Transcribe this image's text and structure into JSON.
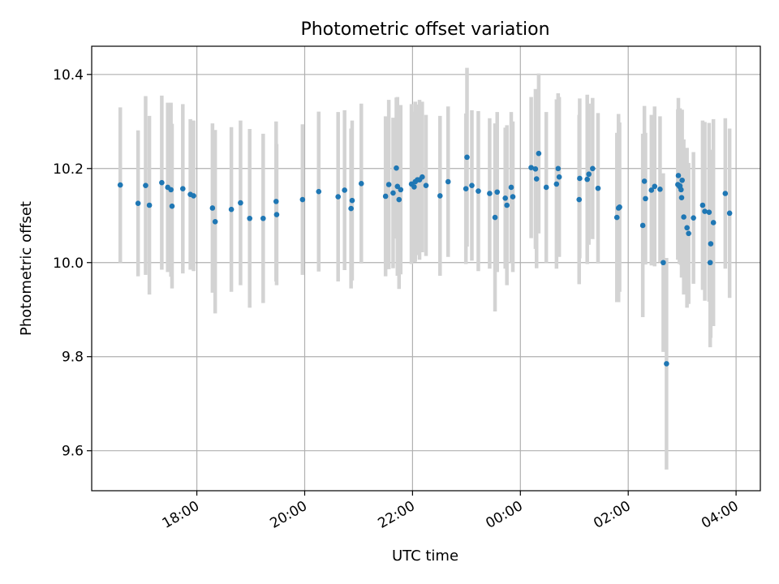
{
  "chart_data": {
    "type": "scatter",
    "title": "Photometric offset variation",
    "xlabel": "UTC time",
    "ylabel": "Photometric offset",
    "x_unit": "hours",
    "x_ticks": [
      {
        "value": 18,
        "label": "18:00"
      },
      {
        "value": 20,
        "label": "20:00"
      },
      {
        "value": 22,
        "label": "22:00"
      },
      {
        "value": 24,
        "label": "00:00"
      },
      {
        "value": 26,
        "label": "02:00"
      },
      {
        "value": 28,
        "label": "04:00"
      }
    ],
    "xlim": [
      16.05,
      28.45
    ],
    "y_ticks": [
      {
        "value": 9.6,
        "label": "9.6"
      },
      {
        "value": 9.8,
        "label": "9.8"
      },
      {
        "value": 10.0,
        "label": "10.0"
      },
      {
        "value": 10.2,
        "label": "10.2"
      },
      {
        "value": 10.4,
        "label": "10.4"
      }
    ],
    "ylim": [
      9.515,
      10.46
    ],
    "grid": true,
    "marker_color": "#1f77b4",
    "errorbar_color": "#d3d3d3",
    "series": [
      {
        "x": [
          16.58,
          16.91,
          17.05,
          17.12,
          17.35,
          17.46,
          17.52,
          17.54,
          17.74,
          17.88,
          17.94,
          18.29,
          18.34,
          18.64,
          18.81,
          18.98,
          19.23,
          19.47,
          19.48,
          19.96,
          20.26,
          20.62,
          20.74,
          20.86,
          20.88,
          21.05,
          21.5,
          21.56,
          21.64,
          21.7,
          21.72,
          21.75,
          21.78,
          21.98,
          22.03,
          22.05,
          22.09,
          22.13,
          22.18,
          22.25,
          22.51,
          22.66,
          22.99,
          23.01,
          23.1,
          23.22,
          23.43,
          23.53,
          23.57,
          23.72,
          23.75,
          23.83,
          23.86,
          24.2,
          24.28,
          24.3,
          24.34,
          24.48,
          24.67,
          24.7,
          24.72,
          25.09,
          25.1,
          25.24,
          25.27,
          25.34,
          25.44,
          25.79,
          25.82,
          25.84,
          26.27,
          26.3,
          26.32,
          26.43,
          26.49,
          26.59,
          26.65,
          26.71,
          26.92,
          26.93,
          26.95,
          26.96,
          26.98,
          26.99,
          27.0,
          27.03,
          27.09,
          27.12,
          27.21,
          27.38,
          27.42,
          27.5,
          27.52,
          27.53,
          27.58,
          27.8,
          27.88
        ],
        "y": [
          10.165,
          10.126,
          10.164,
          10.122,
          10.17,
          10.16,
          10.155,
          10.12,
          10.157,
          10.145,
          10.142,
          10.116,
          10.087,
          10.113,
          10.127,
          10.094,
          10.094,
          10.13,
          10.102,
          10.134,
          10.151,
          10.14,
          10.154,
          10.115,
          10.132,
          10.168,
          10.141,
          10.166,
          10.148,
          10.201,
          10.162,
          10.134,
          10.155,
          10.167,
          10.161,
          10.172,
          10.176,
          10.176,
          10.182,
          10.164,
          10.142,
          10.172,
          10.157,
          10.224,
          10.164,
          10.152,
          10.147,
          10.096,
          10.15,
          10.137,
          10.122,
          10.16,
          10.14,
          10.202,
          10.199,
          10.178,
          10.232,
          10.16,
          10.167,
          10.2,
          10.182,
          10.134,
          10.179,
          10.177,
          10.188,
          10.2,
          10.158,
          10.096,
          10.116,
          10.118,
          10.079,
          10.173,
          10.136,
          10.154,
          10.162,
          10.156,
          10.0,
          9.785,
          10.166,
          10.185,
          10.162,
          10.163,
          10.155,
          10.138,
          10.175,
          10.097,
          10.074,
          10.062,
          10.095,
          10.122,
          10.109,
          10.107,
          10.0,
          10.04,
          10.085,
          10.147,
          10.105
        ],
        "err": [
          0.165,
          0.155,
          0.19,
          0.19,
          0.185,
          0.18,
          0.185,
          0.175,
          0.18,
          0.16,
          0.16,
          0.18,
          0.195,
          0.175,
          0.175,
          0.19,
          0.18,
          0.17,
          0.15,
          0.16,
          0.17,
          0.18,
          0.17,
          0.17,
          0.17,
          0.17,
          0.17,
          0.18,
          0.16,
          0.15,
          0.19,
          0.19,
          0.18,
          0.17,
          0.16,
          0.17,
          0.16,
          0.17,
          0.16,
          0.15,
          0.17,
          0.16,
          0.16,
          0.19,
          0.16,
          0.17,
          0.16,
          0.2,
          0.17,
          0.15,
          0.17,
          0.16,
          0.16,
          0.15,
          0.17,
          0.19,
          0.17,
          0.16,
          0.18,
          0.16,
          0.17,
          0.18,
          0.17,
          0.18,
          0.15,
          0.15,
          0.16,
          0.18,
          0.2,
          0.18,
          0.195,
          0.16,
          0.14,
          0.16,
          0.17,
          0.155,
          0.19,
          0.225,
          0.16,
          0.165,
          0.165,
          0.165,
          0.16,
          0.17,
          0.15,
          0.165,
          0.17,
          0.15,
          0.14,
          0.18,
          0.19,
          0.19,
          0.18,
          0.2,
          0.22,
          0.16,
          0.18
        ]
      }
    ]
  }
}
